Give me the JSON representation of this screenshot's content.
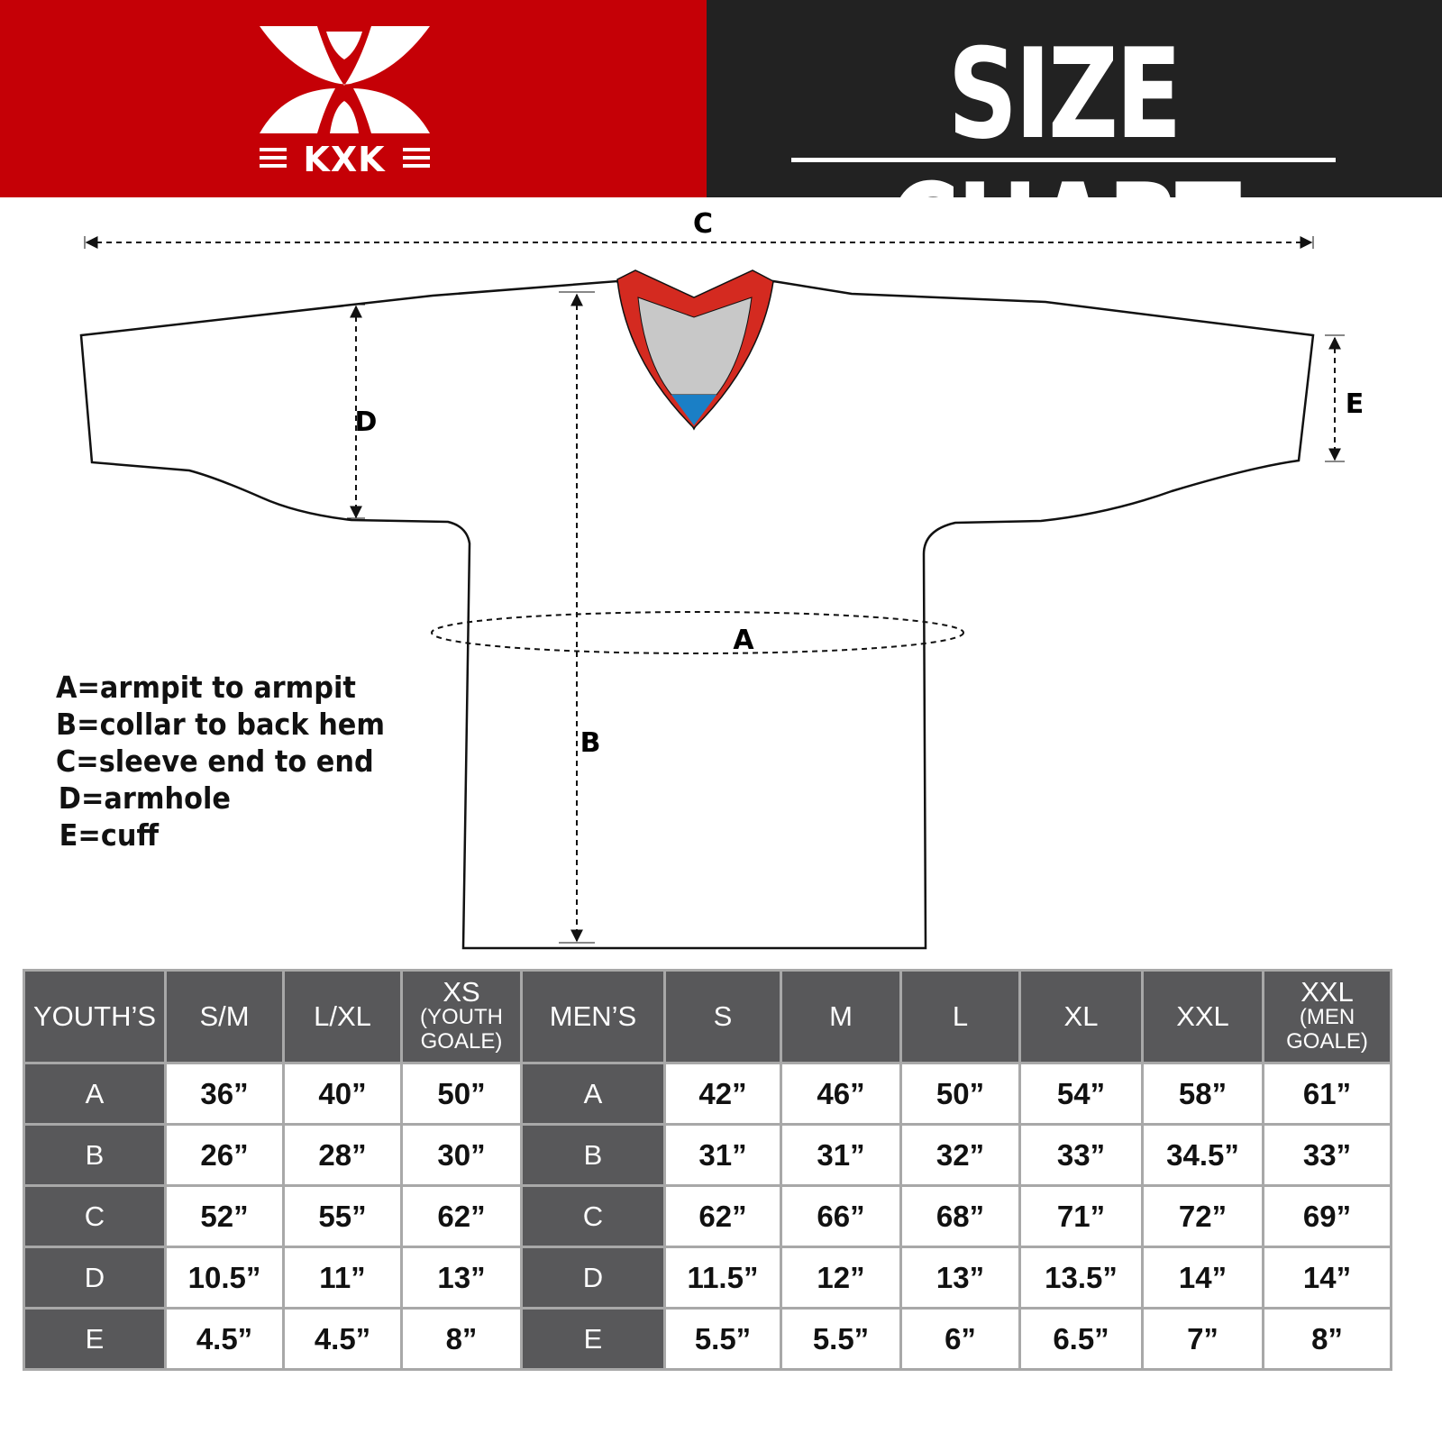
{
  "brand": {
    "name": "KXK",
    "color": "#c50006"
  },
  "header": {
    "title": "SIZE CHART"
  },
  "diagram": {
    "labels": {
      "a": "A",
      "b": "B",
      "c": "C",
      "d": "D",
      "e": "E"
    },
    "collar_colors": {
      "trim": "#d42a20",
      "inner": "#c8c8c8",
      "accent": "#1a7fc6"
    }
  },
  "legend": [
    "A=armpit to armpit",
    "B=collar to back hem",
    "C=sleeve end to end",
    "D=armhole",
    "E=cuff"
  ],
  "table": {
    "youth_header": "YOUTH’S",
    "youth_sizes": [
      {
        "main": "S/M",
        "sub": ""
      },
      {
        "main": "L/XL",
        "sub": ""
      },
      {
        "main": "XS",
        "sub": "(YOUTH GOALE)"
      }
    ],
    "men_header": "MEN’S",
    "men_sizes": [
      {
        "main": "S",
        "sub": ""
      },
      {
        "main": "M",
        "sub": ""
      },
      {
        "main": "L",
        "sub": ""
      },
      {
        "main": "XL",
        "sub": ""
      },
      {
        "main": "XXL",
        "sub": ""
      },
      {
        "main": "XXL",
        "sub": "(MEN GOALE)"
      }
    ],
    "rows": [
      {
        "label": "A",
        "youth": [
          "36”",
          "40”",
          "50”"
        ],
        "men": [
          "42”",
          "46”",
          "50”",
          "54”",
          "58”",
          "61”"
        ]
      },
      {
        "label": "B",
        "youth": [
          "26”",
          "28”",
          "30”"
        ],
        "men": [
          "31”",
          "31”",
          "32”",
          "33”",
          "34.5”",
          "33”"
        ]
      },
      {
        "label": "C",
        "youth": [
          "52”",
          "55”",
          "62”"
        ],
        "men": [
          "62”",
          "66”",
          "68”",
          "71”",
          "72”",
          "69”"
        ]
      },
      {
        "label": "D",
        "youth": [
          "10.5”",
          "11”",
          "13”"
        ],
        "men": [
          "11.5”",
          "12”",
          "13”",
          "13.5”",
          "14”",
          "14”"
        ]
      },
      {
        "label": "E",
        "youth": [
          "4.5”",
          "4.5”",
          "8”"
        ],
        "men": [
          "5.5”",
          "5.5”",
          "6”",
          "6.5”",
          "7”",
          "8”"
        ]
      }
    ]
  }
}
